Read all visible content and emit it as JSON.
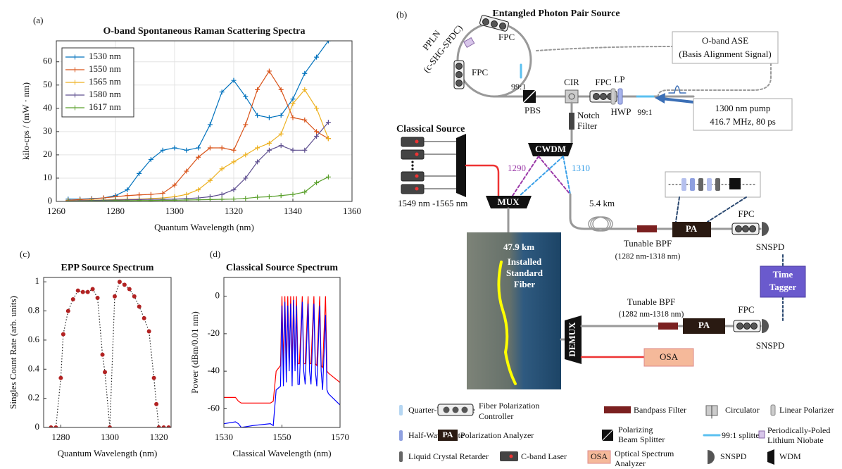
{
  "chart_data": [
    {
      "type": "line",
      "panel_label": "(a)",
      "title": "O-band Spontaneous Raman Scattering Spectra",
      "xlabel": "Quantum Wavelength (nm)",
      "ylabel": "kilo-cps / (mW · nm)",
      "x": [
        1264,
        1268,
        1272,
        1276,
        1280,
        1284,
        1288,
        1292,
        1296,
        1300,
        1304,
        1308,
        1312,
        1316,
        1320,
        1324,
        1328,
        1332,
        1336,
        1340,
        1344,
        1348,
        1352
      ],
      "series": [
        {
          "name": "1530 nm",
          "color": "#0072bd",
          "values": [
            1,
            1,
            1.2,
            1.5,
            2.5,
            5,
            12,
            18,
            22,
            23,
            22,
            23,
            33,
            47,
            52,
            45,
            37,
            36,
            37,
            44,
            55,
            62,
            69
          ]
        },
        {
          "name": "1550 nm",
          "color": "#d95319",
          "values": [
            0.5,
            0.8,
            1,
            1.5,
            2,
            2.5,
            2.8,
            3,
            3.5,
            7,
            13,
            19,
            23,
            23,
            22,
            33,
            48,
            56,
            48,
            36,
            35,
            30,
            27
          ]
        },
        {
          "name": "1565 nm",
          "color": "#edb120",
          "values": [
            0.3,
            0.4,
            0.5,
            0.6,
            0.8,
            0.9,
            1,
            1.2,
            1.5,
            2,
            3,
            5,
            9,
            14,
            17,
            20,
            23,
            25,
            29,
            42,
            48,
            40,
            27
          ]
        },
        {
          "name": "1580 nm",
          "color": "#5e4f8f",
          "values": [
            0.2,
            0.3,
            0.4,
            0.5,
            0.6,
            0.7,
            0.8,
            0.9,
            0.9,
            1,
            1.2,
            1.5,
            2,
            3,
            5,
            10,
            17,
            22,
            24,
            22,
            22,
            28,
            34
          ]
        },
        {
          "name": "1617 nm",
          "color": "#5aa02c",
          "values": [
            0.1,
            0.1,
            0.2,
            0.2,
            0.3,
            0.3,
            0.4,
            0.4,
            0.5,
            0.5,
            0.6,
            0.7,
            0.8,
            0.9,
            1,
            1.3,
            1.8,
            2,
            2.5,
            3,
            4,
            8,
            10.5
          ]
        }
      ],
      "marker": "+",
      "legend": "upper left",
      "grid": true,
      "xlim": [
        1260,
        1360
      ],
      "xticks": [
        1260,
        1280,
        1300,
        1320,
        1340,
        1360
      ],
      "ylim": [
        0,
        69
      ],
      "yticks": [
        0,
        10,
        20,
        30,
        40,
        50,
        60
      ]
    },
    {
      "type": "line",
      "panel_label": "(c)",
      "title": "EPP Source Spectrum",
      "xlabel": "Quantum Wavelength (nm)",
      "ylabel": "Singles Count Rate (arb. units)",
      "x": [
        1276,
        1278,
        1280,
        1281,
        1283,
        1285,
        1287,
        1289,
        1291,
        1293,
        1295,
        1297,
        1298,
        1300,
        1302,
        1304,
        1306,
        1308,
        1310,
        1312,
        1314,
        1316,
        1318,
        1319,
        1320,
        1322,
        1324
      ],
      "values": [
        0,
        0,
        0.34,
        0.64,
        0.8,
        0.88,
        0.94,
        0.93,
        0.93,
        0.95,
        0.89,
        0.5,
        0.38,
        0,
        0.9,
        1,
        0.98,
        0.95,
        0.9,
        0.83,
        0.75,
        0.66,
        0.34,
        0.16,
        0,
        0,
        0
      ],
      "color": "#222222",
      "line_style": "dotted",
      "marker": "o",
      "marker_color": "#b22222",
      "grid": false,
      "xlim": [
        1273,
        1325
      ],
      "xticks": [
        1280,
        1300,
        1320
      ],
      "ylim": [
        0,
        1.03
      ],
      "yticks": [
        0,
        0.2,
        0.4,
        0.6,
        0.8,
        1
      ]
    },
    {
      "type": "line",
      "panel_label": "(d)",
      "title": "Classical Source Spectrum",
      "xlabel": "Classical Wavelength (nm)",
      "ylabel": "Power (dBm/0.01 nm)",
      "x": [
        1530,
        1534,
        1535,
        1536,
        1540,
        1546,
        1547,
        1548,
        1549.5,
        1550,
        1550.5,
        1551,
        1551.5,
        1552,
        1552.5,
        1553,
        1553.5,
        1554,
        1554.5,
        1555,
        1555.5,
        1556,
        1557,
        1557.5,
        1558,
        1559,
        1559.5,
        1560,
        1561,
        1561.5,
        1562,
        1563,
        1563.5,
        1564,
        1565,
        1565.5,
        1566,
        1570
      ],
      "series": [
        {
          "color": "#ff0000",
          "values": [
            -54,
            -54,
            -56,
            -57,
            -57,
            -57,
            -56,
            -40,
            -37,
            0,
            -37,
            0,
            -37,
            0,
            -37,
            0,
            -37,
            0,
            -37,
            0,
            -36,
            -36,
            0,
            -36,
            -36,
            0,
            -36,
            -36,
            0,
            -36,
            -37,
            0,
            -37,
            -38,
            0,
            -40,
            -41,
            -46
          ]
        },
        {
          "color": "#0000ff",
          "values": [
            -68,
            -67,
            -68,
            -70,
            -69,
            -68,
            -69,
            -50,
            -48,
            -5,
            -48,
            -3,
            -46,
            -5,
            -40,
            -4,
            -48,
            -2,
            -40,
            -5,
            -47,
            -47,
            -3,
            -40,
            -47,
            -4,
            -40,
            -47,
            -4,
            -40,
            -48,
            -5,
            -40,
            -50,
            -10,
            -50,
            -52,
            -58
          ]
        }
      ],
      "grid": false,
      "xlim": [
        1530,
        1570
      ],
      "xticks": [
        1530,
        1550,
        1570
      ],
      "ylim": [
        -70,
        10
      ],
      "yticks": [
        -60,
        -40,
        -20,
        0
      ]
    }
  ],
  "diagram": {
    "panel_label": "(b)",
    "title": "Entangled Photon Pair Source",
    "ppln": [
      "PPLN",
      "(c-SHG-SPDC)"
    ],
    "fpc": [
      "FPC",
      "FPC",
      "FPC",
      "FPC",
      "FPC"
    ],
    "splitter": [
      "99:1",
      "99:1"
    ],
    "cir": "CIR",
    "lp": "LP",
    "hwp": "HWP",
    "pbs": "PBS",
    "notch": [
      "Notch",
      "Filter"
    ],
    "ase": [
      "O-band ASE",
      "(Basis Alignment Signal)"
    ],
    "pump": [
      "1300 nm pump",
      "416.7 MHz, 80 ps"
    ],
    "classical_source": "Classical Source",
    "laser_range": "1549 nm -1565 nm",
    "cwdm": "CWDM",
    "ch1290": "1290",
    "ch1310": "1310",
    "mux": "MUX",
    "spool": "5.4 km",
    "bpf": [
      "Tunable BPF",
      "Tunable BPF"
    ],
    "bpf_range": [
      "(1282 nm-1318 nm)",
      "(1282 nm-1318 nm)"
    ],
    "pa": [
      "PA",
      "PA"
    ],
    "snspd": [
      "SNSPD",
      "SNSPD"
    ],
    "tagger": [
      "Time",
      "Tagger"
    ],
    "fiber": [
      "47.9 km",
      "Installed",
      "Standard",
      "Fiber"
    ],
    "demux": "DEMUX",
    "osa": "OSA",
    "legend": [
      {
        "text": [
          "Quarter-Wave Plate"
        ]
      },
      {
        "text": [
          "Fiber Polarization",
          "Controller"
        ]
      },
      {
        "text": [
          "Bandpass Filter"
        ]
      },
      {
        "text": [
          "Circulator"
        ]
      },
      {
        "text": [
          "Linear Polarizer"
        ]
      },
      {
        "text": [
          "Half-Wave Plate"
        ]
      },
      {
        "symbol": "PA",
        "text": [
          "Polarization Analyzer"
        ]
      },
      {
        "text": [
          "Polarizing",
          "Beam Splitter"
        ]
      },
      {
        "text": [
          "99:1 splitter"
        ]
      },
      {
        "text": [
          "Periodically-Poled",
          "Lithium Niobate"
        ]
      },
      {
        "text": [
          "Liquid Crystal Retarder"
        ]
      },
      {
        "text": [
          "C-band Laser"
        ]
      },
      {
        "symbol": "OSA",
        "text": [
          "Optical Spectrum",
          "Analyzer"
        ]
      },
      {
        "text": [
          "SNSPD"
        ]
      },
      {
        "text": [
          "WDM"
        ]
      }
    ]
  }
}
